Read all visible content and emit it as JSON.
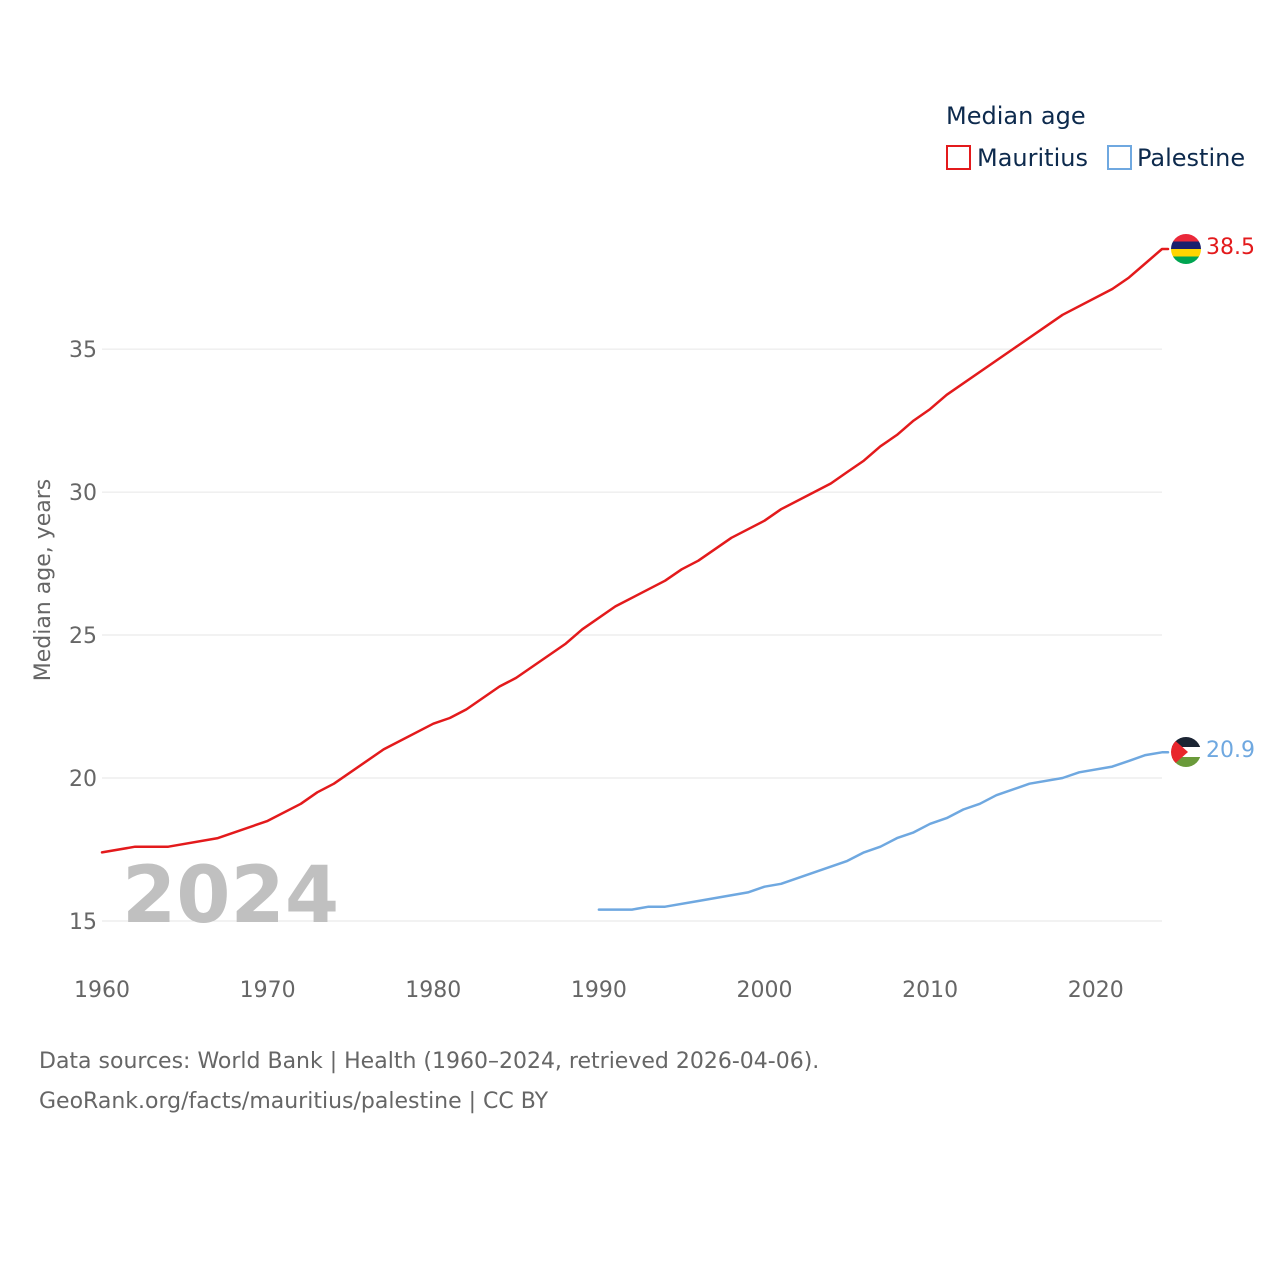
{
  "chart_data": {
    "type": "line",
    "title": "",
    "legend_title": "Median age",
    "xlabel": "",
    "ylabel": "Median age, years",
    "xlim": [
      1960,
      2024
    ],
    "ylim": [
      15,
      38.5
    ],
    "x_ticks": [
      1960,
      1970,
      1980,
      1990,
      2000,
      2010,
      2020
    ],
    "y_ticks": [
      15,
      20,
      25,
      30,
      35
    ],
    "grid": true,
    "legend_position": "top-right",
    "year_watermark": "2024",
    "series": [
      {
        "name": "Mauritius",
        "color": "#e31a1c",
        "end_label": "38.5",
        "flag_icon": "mauritius-flag-icon",
        "points": [
          [
            1960,
            17.4
          ],
          [
            1962,
            17.6
          ],
          [
            1964,
            17.6
          ],
          [
            1967,
            17.9
          ],
          [
            1970,
            18.5
          ],
          [
            1972,
            19.1
          ],
          [
            1973,
            19.5
          ],
          [
            1974,
            19.8
          ],
          [
            1977,
            21.0
          ],
          [
            1980,
            21.9
          ],
          [
            1981,
            22.1
          ],
          [
            1982,
            22.4
          ],
          [
            1984,
            23.2
          ],
          [
            1985,
            23.5
          ],
          [
            1988,
            24.7
          ],
          [
            1989,
            25.2
          ],
          [
            1991,
            26.0
          ],
          [
            1994,
            26.9
          ],
          [
            1995,
            27.3
          ],
          [
            1996,
            27.6
          ],
          [
            1998,
            28.4
          ],
          [
            2000,
            29.0
          ],
          [
            2001,
            29.4
          ],
          [
            2004,
            30.3
          ],
          [
            2005,
            30.7
          ],
          [
            2006,
            31.1
          ],
          [
            2007,
            31.6
          ],
          [
            2008,
            32.0
          ],
          [
            2009,
            32.5
          ],
          [
            2010,
            32.9
          ],
          [
            2011,
            33.4
          ],
          [
            2015,
            35.0
          ],
          [
            2018,
            36.2
          ],
          [
            2021,
            37.1
          ],
          [
            2022,
            37.5
          ],
          [
            2024,
            38.5
          ]
        ]
      },
      {
        "name": "Palestine",
        "color": "#6fa8e0",
        "end_label": "20.9",
        "flag_icon": "palestine-flag-icon",
        "points": [
          [
            1990,
            15.4
          ],
          [
            1992,
            15.4
          ],
          [
            1993,
            15.5
          ],
          [
            1994,
            15.5
          ],
          [
            1996,
            15.7
          ],
          [
            1999,
            16.0
          ],
          [
            2000,
            16.2
          ],
          [
            2001,
            16.3
          ],
          [
            2005,
            17.1
          ],
          [
            2006,
            17.4
          ],
          [
            2007,
            17.6
          ],
          [
            2008,
            17.9
          ],
          [
            2009,
            18.1
          ],
          [
            2010,
            18.4
          ],
          [
            2011,
            18.6
          ],
          [
            2012,
            18.9
          ],
          [
            2013,
            19.1
          ],
          [
            2014,
            19.4
          ],
          [
            2016,
            19.8
          ],
          [
            2018,
            20.0
          ],
          [
            2019,
            20.2
          ],
          [
            2021,
            20.4
          ],
          [
            2022,
            20.6
          ],
          [
            2023,
            20.8
          ],
          [
            2024,
            20.9
          ]
        ]
      }
    ]
  },
  "footer": {
    "source_line1": "Data sources: World Bank | Health (1960–2024, retrieved 2026-04-06).",
    "source_line2": "GeoRank.org/facts/mauritius/palestine | CC BY"
  }
}
